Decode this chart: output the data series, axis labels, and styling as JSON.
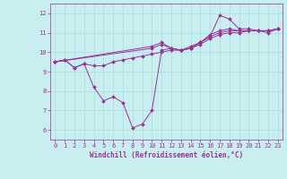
{
  "xlabel": "Windchill (Refroidissement éolien,°C)",
  "xlim": [
    -0.5,
    23.5
  ],
  "ylim": [
    5.5,
    12.5
  ],
  "xticks": [
    0,
    1,
    2,
    3,
    4,
    5,
    6,
    7,
    8,
    9,
    10,
    11,
    12,
    13,
    14,
    15,
    16,
    17,
    18,
    19,
    20,
    21,
    22,
    23
  ],
  "yticks": [
    6,
    7,
    8,
    9,
    10,
    11,
    12
  ],
  "bg_color": "#c8eef0",
  "grid_color": "#aadddd",
  "line_color": "#993399",
  "lines": [
    {
      "x": [
        0,
        1,
        2,
        3,
        4,
        5,
        6,
        7,
        8,
        9,
        10,
        11,
        12,
        13,
        14,
        15,
        16,
        17,
        18,
        19,
        20,
        21,
        22,
        23
      ],
      "y": [
        9.5,
        9.6,
        9.2,
        9.4,
        8.2,
        7.5,
        7.7,
        7.4,
        6.1,
        6.3,
        7.0,
        10.1,
        10.2,
        10.1,
        10.2,
        10.5,
        10.8,
        11.9,
        11.7,
        11.2,
        11.2,
        11.1,
        11.0,
        11.2
      ]
    },
    {
      "x": [
        0,
        1,
        2,
        3,
        4,
        5,
        6,
        7,
        8,
        9,
        10,
        11,
        12,
        13,
        14,
        15,
        16,
        17,
        18,
        19,
        20,
        21,
        22,
        23
      ],
      "y": [
        9.5,
        9.6,
        9.2,
        9.4,
        9.3,
        9.3,
        9.5,
        9.6,
        9.7,
        9.8,
        9.9,
        10.0,
        10.1,
        10.1,
        10.2,
        10.4,
        10.7,
        10.9,
        11.0,
        11.0,
        11.1,
        11.1,
        11.1,
        11.2
      ]
    },
    {
      "x": [
        0,
        10,
        11,
        12,
        13,
        14,
        15,
        16,
        17,
        18,
        19,
        20,
        21,
        22,
        23
      ],
      "y": [
        9.5,
        10.2,
        10.4,
        10.2,
        10.1,
        10.2,
        10.5,
        10.8,
        11.0,
        11.1,
        11.1,
        11.1,
        11.1,
        11.1,
        11.2
      ]
    },
    {
      "x": [
        0,
        10,
        11,
        12,
        13,
        14,
        15,
        16,
        17,
        18,
        19,
        20,
        21,
        22,
        23
      ],
      "y": [
        9.5,
        10.3,
        10.5,
        10.2,
        10.1,
        10.3,
        10.5,
        10.9,
        11.1,
        11.2,
        11.1,
        11.1,
        11.1,
        11.1,
        11.2
      ]
    }
  ]
}
